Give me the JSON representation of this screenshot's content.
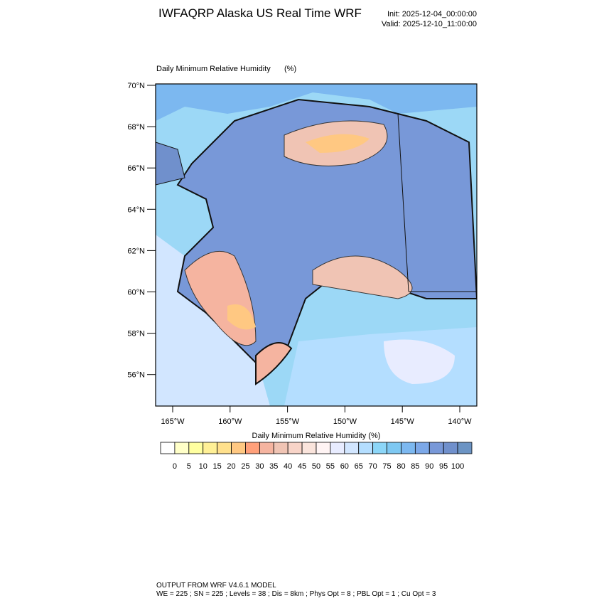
{
  "header": {
    "title": "IWFAQRP Alaska US Real Time WRF",
    "init": "Init: 2025-12-04_00:00:00",
    "valid": "Valid: 2025-12-10_11:00:00"
  },
  "map": {
    "subtitle": "Daily Minimum Relative Humidity",
    "units": "(%)",
    "lat_labels": [
      "70°N",
      "68°N",
      "66°N",
      "64°N",
      "62°N",
      "60°N",
      "58°N",
      "56°N"
    ],
    "lon_labels": [
      "165°W",
      "160°W",
      "155°W",
      "150°W",
      "145°W",
      "140°W"
    ]
  },
  "colorbar": {
    "title": "Daily Minimum Relative Humidity  (%)",
    "labels": [
      "0",
      "5",
      "10",
      "15",
      "20",
      "25",
      "30",
      "35",
      "40",
      "45",
      "50",
      "55",
      "60",
      "65",
      "70",
      "75",
      "80",
      "85",
      "90",
      "95",
      "100"
    ],
    "colors": [
      "#ffffff",
      "#ffffc8",
      "#ffffa0",
      "#fff096",
      "#ffe08c",
      "#ffc882",
      "#ffa07a",
      "#f5b4a0",
      "#f0c4b4",
      "#f8d4c8",
      "#fae4dc",
      "#fff4f4",
      "#e8ecff",
      "#d2e6ff",
      "#b4deff",
      "#8cd6f8",
      "#7ec8f2",
      "#7cb8f0",
      "#7ca8e8",
      "#7898d8",
      "#7090cc",
      "#6c94c4"
    ]
  },
  "footer": {
    "line1": "OUTPUT FROM WRF V4.6.1 MODEL",
    "line2": "WE = 225 ; SN = 225 ; Levels = 38 ; Dis = 8km ; Phys Opt = 8 ; PBL Opt = 1 ; Cu Opt = 3"
  }
}
